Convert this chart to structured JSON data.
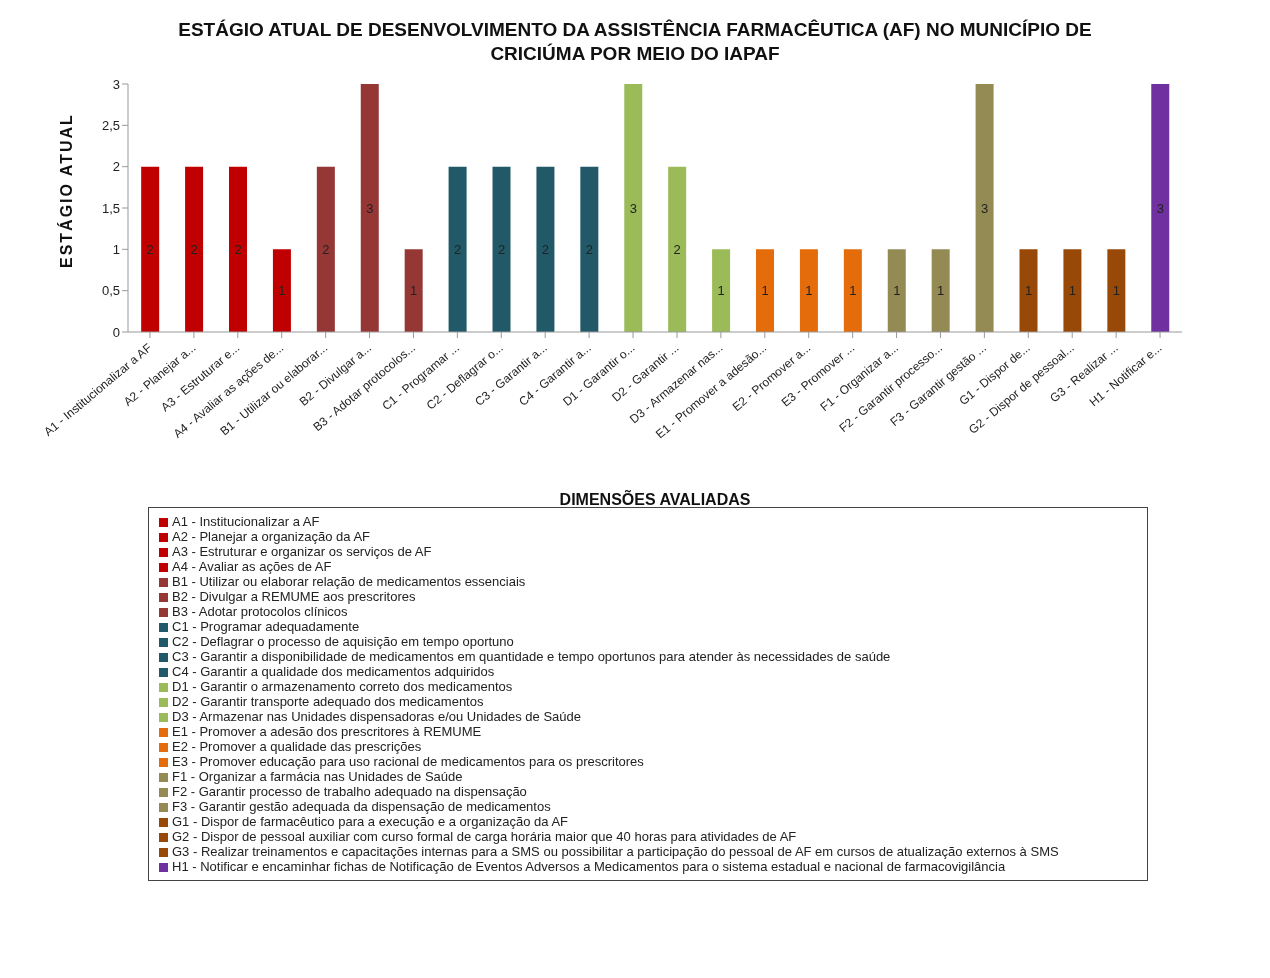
{
  "chart_data": {
    "type": "bar",
    "title": "ESTÁGIO ATUAL DE DESENVOLVIMENTO DA ASSISTÊNCIA FARMACÊUTICA (AF) NO MUNICÍPIO DE CRICIÚMA POR MEIO DO IAPAF",
    "xlabel": "DIMENSÕES AVALIADAS",
    "ylabel": "ESTÁGIO ATUAL",
    "categories": [
      "A1 - Institucionalizar  a AF",
      "A2 - Planejar a...",
      "A3 - Estruturar e...",
      "A4 - Avaliar as ações de...",
      "B1 - Utilizar  ou elaborar...",
      "B2 - Divulgar a...",
      "B3 - Adotar protocolos...",
      "C1 - Programar ...",
      "C2 - Deflagrar o...",
      "C3 - Garantir a...",
      "C4 - Garantir a...",
      "D1 - Garantir o...",
      "D2 - Garantir ...",
      "D3 - Armazenar nas...",
      "E1 - Promover a adesão...",
      "E2 - Promover a...",
      "E3 - Promover ...",
      "F1 - Organizar a...",
      "F2 - Garantir processo...",
      "F3 - Garantir gestão ...",
      "G1 - Dispor de...",
      "G2 - Dispor de pessoal...",
      "G3 - Realizar ...",
      "H1 - Notificar e..."
    ],
    "series": [
      {
        "name": "A1 - Institucionalizar a AF",
        "color": "#c00000",
        "values": [
          2,
          null,
          null,
          null,
          null,
          null,
          null,
          null,
          null,
          null,
          null,
          null,
          null,
          null,
          null,
          null,
          null,
          null,
          null,
          null,
          null,
          null,
          null,
          null
        ]
      },
      {
        "name": "A2 - Planejar a organização da AF",
        "color": "#c00000",
        "values": [
          null,
          2,
          null,
          null,
          null,
          null,
          null,
          null,
          null,
          null,
          null,
          null,
          null,
          null,
          null,
          null,
          null,
          null,
          null,
          null,
          null,
          null,
          null,
          null
        ]
      },
      {
        "name": "A3 - Estruturar e organizar os serviços de AF",
        "color": "#c00000",
        "values": [
          null,
          null,
          2,
          null,
          null,
          null,
          null,
          null,
          null,
          null,
          null,
          null,
          null,
          null,
          null,
          null,
          null,
          null,
          null,
          null,
          null,
          null,
          null,
          null
        ]
      },
      {
        "name": "A4 - Avaliar as ações de AF",
        "color": "#c00000",
        "values": [
          null,
          null,
          null,
          1,
          null,
          null,
          null,
          null,
          null,
          null,
          null,
          null,
          null,
          null,
          null,
          null,
          null,
          null,
          null,
          null,
          null,
          null,
          null,
          null
        ]
      },
      {
        "name": "B1 - Utilizar  ou elaborar relação de medicamentos essenciais",
        "color": "#953735",
        "values": [
          null,
          null,
          null,
          null,
          2,
          null,
          null,
          null,
          null,
          null,
          null,
          null,
          null,
          null,
          null,
          null,
          null,
          null,
          null,
          null,
          null,
          null,
          null,
          null
        ]
      },
      {
        "name": "B2 - Divulgar a REMUME  aos prescritores",
        "color": "#953735",
        "values": [
          null,
          null,
          null,
          null,
          null,
          3,
          null,
          null,
          null,
          null,
          null,
          null,
          null,
          null,
          null,
          null,
          null,
          null,
          null,
          null,
          null,
          null,
          null,
          null
        ]
      },
      {
        "name": "B3 - Adotar protocolos clínicos",
        "color": "#953735",
        "values": [
          null,
          null,
          null,
          null,
          null,
          null,
          1,
          null,
          null,
          null,
          null,
          null,
          null,
          null,
          null,
          null,
          null,
          null,
          null,
          null,
          null,
          null,
          null,
          null
        ]
      },
      {
        "name": "C1 - Programar adequadamente",
        "color": "#215968",
        "values": [
          null,
          null,
          null,
          null,
          null,
          null,
          null,
          2,
          null,
          null,
          null,
          null,
          null,
          null,
          null,
          null,
          null,
          null,
          null,
          null,
          null,
          null,
          null,
          null
        ]
      },
      {
        "name": "C2 - Deflagrar o processo de aquisição em tempo oportuno",
        "color": "#215968",
        "values": [
          null,
          null,
          null,
          null,
          null,
          null,
          null,
          null,
          2,
          null,
          null,
          null,
          null,
          null,
          null,
          null,
          null,
          null,
          null,
          null,
          null,
          null,
          null,
          null
        ]
      },
      {
        "name": "C3 - Garantir a disponibilidade de medicamentos em quantidade e tempo oportunos para atender às necessidades de saúde",
        "color": "#215968",
        "values": [
          null,
          null,
          null,
          null,
          null,
          null,
          null,
          null,
          null,
          2,
          null,
          null,
          null,
          null,
          null,
          null,
          null,
          null,
          null,
          null,
          null,
          null,
          null,
          null
        ]
      },
      {
        "name": "C4 - Garantir a qualidade dos medicamentos adquiridos",
        "color": "#215968",
        "values": [
          null,
          null,
          null,
          null,
          null,
          null,
          null,
          null,
          null,
          null,
          2,
          null,
          null,
          null,
          null,
          null,
          null,
          null,
          null,
          null,
          null,
          null,
          null,
          null
        ]
      },
      {
        "name": "D1 - Garantir o armazenamento correto dos medicamentos",
        "color": "#9bbb59",
        "values": [
          null,
          null,
          null,
          null,
          null,
          null,
          null,
          null,
          null,
          null,
          null,
          3,
          null,
          null,
          null,
          null,
          null,
          null,
          null,
          null,
          null,
          null,
          null,
          null
        ]
      },
      {
        "name": "D2 - Garantir transporte adequado dos medicamentos",
        "color": "#9bbb59",
        "values": [
          null,
          null,
          null,
          null,
          null,
          null,
          null,
          null,
          null,
          null,
          null,
          null,
          2,
          null,
          null,
          null,
          null,
          null,
          null,
          null,
          null,
          null,
          null,
          null
        ]
      },
      {
        "name": "D3 - Armazenar nas Unidades dispensadoras e/ou Unidades de Saúde",
        "color": "#9bbb59",
        "values": [
          null,
          null,
          null,
          null,
          null,
          null,
          null,
          null,
          null,
          null,
          null,
          null,
          null,
          1,
          null,
          null,
          null,
          null,
          null,
          null,
          null,
          null,
          null,
          null
        ]
      },
      {
        "name": "E1 - Promover a adesão dos prescritores à REMUME",
        "color": "#e46c0a",
        "values": [
          null,
          null,
          null,
          null,
          null,
          null,
          null,
          null,
          null,
          null,
          null,
          null,
          null,
          null,
          1,
          null,
          null,
          null,
          null,
          null,
          null,
          null,
          null,
          null
        ]
      },
      {
        "name": "E2 - Promover a qualidade das prescrições",
        "color": "#e46c0a",
        "values": [
          null,
          null,
          null,
          null,
          null,
          null,
          null,
          null,
          null,
          null,
          null,
          null,
          null,
          null,
          null,
          1,
          null,
          null,
          null,
          null,
          null,
          null,
          null,
          null
        ]
      },
      {
        "name": "E3 - Promover educação para uso racional de medicamentos  para os prescritores",
        "color": "#e46c0a",
        "values": [
          null,
          null,
          null,
          null,
          null,
          null,
          null,
          null,
          null,
          null,
          null,
          null,
          null,
          null,
          null,
          null,
          1,
          null,
          null,
          null,
          null,
          null,
          null,
          null
        ]
      },
      {
        "name": "F1 - Organizar a farmácia nas Unidades de Saúde",
        "color": "#948a54",
        "values": [
          null,
          null,
          null,
          null,
          null,
          null,
          null,
          null,
          null,
          null,
          null,
          null,
          null,
          null,
          null,
          null,
          null,
          1,
          null,
          null,
          null,
          null,
          null,
          null
        ]
      },
      {
        "name": "F2 - Garantir processo de trabalho adequado na dispensação",
        "color": "#948a54",
        "values": [
          null,
          null,
          null,
          null,
          null,
          null,
          null,
          null,
          null,
          null,
          null,
          null,
          null,
          null,
          null,
          null,
          null,
          null,
          1,
          null,
          null,
          null,
          null,
          null
        ]
      },
      {
        "name": "F3 - Garantir gestão adequada da dispensação de medicamentos",
        "color": "#948a54",
        "values": [
          null,
          null,
          null,
          null,
          null,
          null,
          null,
          null,
          null,
          null,
          null,
          null,
          null,
          null,
          null,
          null,
          null,
          null,
          null,
          3,
          null,
          null,
          null,
          null
        ]
      },
      {
        "name": "G1 - Dispor de farmacêutico para a execução e a organização  da AF",
        "color": "#984807",
        "values": [
          null,
          null,
          null,
          null,
          null,
          null,
          null,
          null,
          null,
          null,
          null,
          null,
          null,
          null,
          null,
          null,
          null,
          null,
          null,
          null,
          1,
          null,
          null,
          null
        ]
      },
      {
        "name": "G2 - Dispor de pessoal auxiliar com curso formal de carga horária maior que 40 horas para atividades de AF",
        "color": "#984807",
        "values": [
          null,
          null,
          null,
          null,
          null,
          null,
          null,
          null,
          null,
          null,
          null,
          null,
          null,
          null,
          null,
          null,
          null,
          null,
          null,
          null,
          null,
          1,
          null,
          null
        ]
      },
      {
        "name": "G3 - Realizar treinamentos e capacitações internas para a SMS ou possibilitar  a participação do pessoal de AF em cursos de atualização  externos à SMS",
        "color": "#984807",
        "values": [
          null,
          null,
          null,
          null,
          null,
          null,
          null,
          null,
          null,
          null,
          null,
          null,
          null,
          null,
          null,
          null,
          null,
          null,
          null,
          null,
          null,
          null,
          1,
          null
        ]
      },
      {
        "name": "H1 - Notificar e encaminhar fichas de Notificação de Eventos Adversos a Medicamentos para o sistema estadual  e nacional de farmacovigilância",
        "color": "#7030a0",
        "values": [
          null,
          null,
          null,
          null,
          null,
          null,
          null,
          null,
          null,
          null,
          null,
          null,
          null,
          null,
          null,
          null,
          null,
          null,
          null,
          null,
          null,
          null,
          null,
          3
        ]
      }
    ],
    "ylim": [
      0,
      3
    ],
    "yticks": [
      0,
      {
        "value": 0.5,
        "label": "0,5"
      },
      1,
      {
        "value": 1.5,
        "label": "1,5"
      },
      2,
      {
        "value": 2.5,
        "label": "2,5"
      },
      3
    ],
    "grid": false,
    "legend": "bottom",
    "data_labels": true
  }
}
